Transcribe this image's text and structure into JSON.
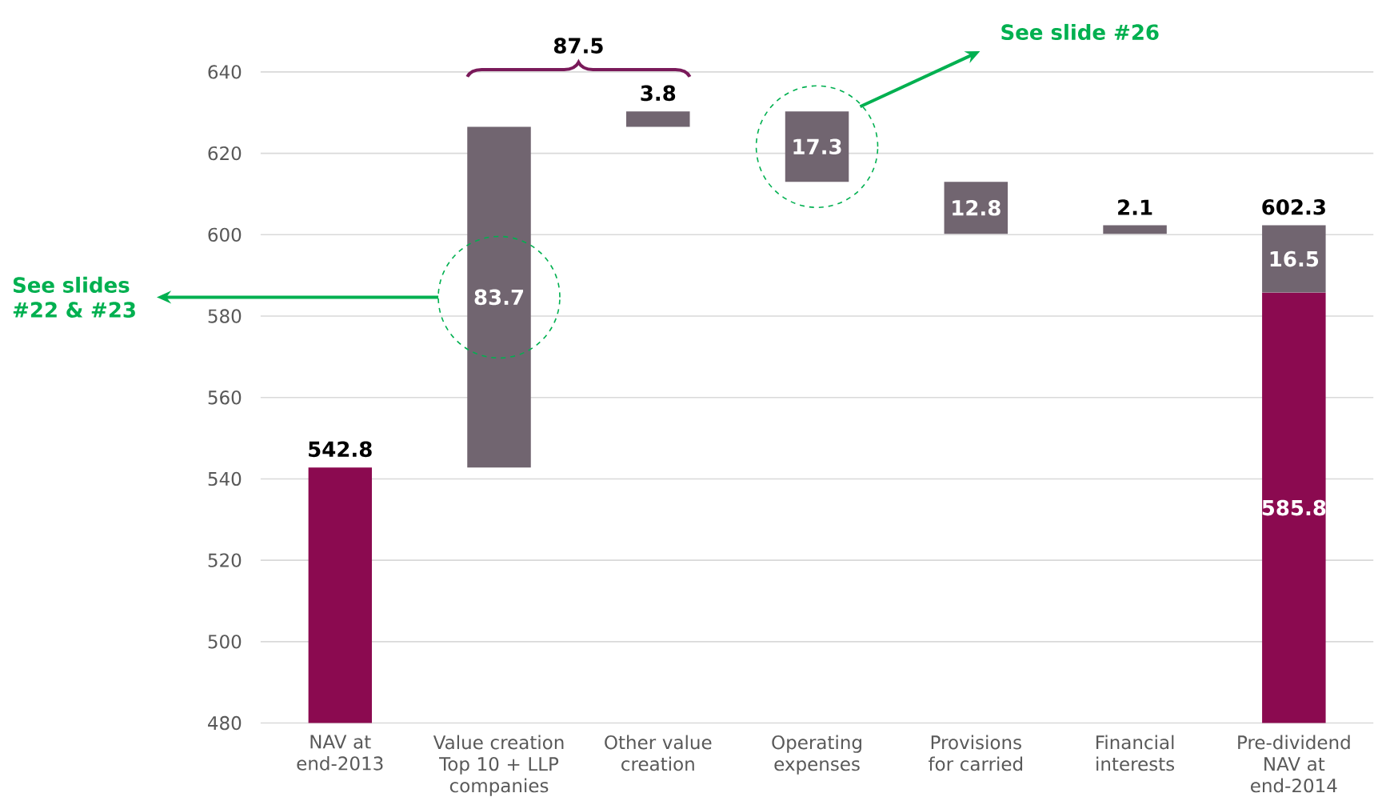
{
  "chart_data": {
    "type": "bar",
    "categories": [
      "NAV at end-2013",
      "Value creation Top 10 + LLP companies",
      "Other value creation",
      "Operating expenses",
      "Provisions for carried",
      "Financial interests",
      "Pre-dividend NAV at end-2014"
    ],
    "series": [
      {
        "color": "#8b0a50",
        "values": [
          542.8,
          null,
          null,
          null,
          null,
          null,
          585.8
        ]
      },
      {
        "color": "#716570",
        "values": [
          null,
          83.7,
          3.8,
          17.3,
          12.8,
          2.1,
          16.5
        ],
        "base": [
          null,
          542.8,
          626.5,
          613.0,
          600.2,
          600.2,
          585.8
        ]
      }
    ],
    "ylim": [
      480,
      640
    ],
    "yticks": [
      480,
      500,
      520,
      540,
      560,
      580,
      600,
      620,
      640
    ],
    "grid": "y",
    "data_labels": true,
    "totals": [
      null,
      null,
      null,
      null,
      null,
      null,
      "602.3"
    ],
    "annotations": [
      "87.5",
      "See slide #26",
      "See slides #22 & #23"
    ]
  }
}
